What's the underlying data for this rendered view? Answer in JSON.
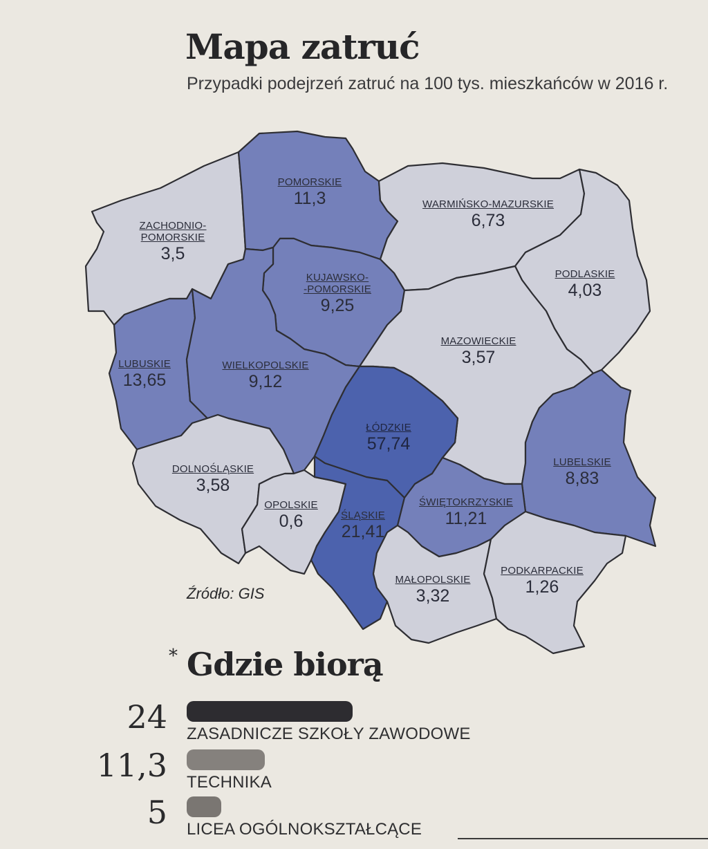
{
  "header": {
    "title": "Mapa zatruć",
    "subtitle": "Przypadki podejrzeń zatruć na 100 tys. mieszkańców w  2016 r."
  },
  "map": {
    "regions": [
      {
        "id": "pomorskie",
        "name": "POMORSKIE",
        "value": "11,3"
      },
      {
        "id": "zachodniopomorskie",
        "name_line1": "ZACHODNIO-",
        "name_line2": "POMORSKIE",
        "value": "3,5"
      },
      {
        "id": "warminsko-mazurskie",
        "name": "WARMIŃSKO-MAZURSKIE",
        "value": "6,73"
      },
      {
        "id": "kujawsko-pomorskie",
        "name_line1": "KUJAWSKO-",
        "name_line2": "-POMORSKIE",
        "value": "9,25"
      },
      {
        "id": "podlaskie",
        "name": "PODLASKIE",
        "value": "4,03"
      },
      {
        "id": "mazowieckie",
        "name": "MAZOWIECKIE",
        "value": "3,57"
      },
      {
        "id": "lubuskie",
        "name": "LUBUSKIE",
        "value": "13,65"
      },
      {
        "id": "wielkopolskie",
        "name": "WIELKOPOLSKIE",
        "value": "9,12"
      },
      {
        "id": "lodzkie",
        "name": "ŁÓDZKIE",
        "value": "57,74"
      },
      {
        "id": "lubelskie",
        "name": "LUBELSKIE",
        "value": "8,83"
      },
      {
        "id": "dolnoslaskie",
        "name": "DOLNOŚLĄSKIE",
        "value": "3,58"
      },
      {
        "id": "opolskie",
        "name": "OPOLSKIE",
        "value": "0,6"
      },
      {
        "id": "slaskie",
        "name": "ŚLĄSKIE",
        "value": "21,41"
      },
      {
        "id": "swietokrzyskie",
        "name": "ŚWIĘTOKRZYSKIE",
        "value": "11,21"
      },
      {
        "id": "malopolskie",
        "name": "MAŁOPOLSKIE",
        "value": "3,32"
      },
      {
        "id": "podkarpackie",
        "name": "PODKARPACKIE",
        "value": "1,26"
      }
    ],
    "colors": {
      "low": "#cfd0da",
      "mid": "#7480ba",
      "high": "#4c62ad"
    },
    "source": "Źródło: GIS"
  },
  "chart_data": {
    "type": "bar",
    "title": "Gdzie biorą",
    "title_marker": "*",
    "categories": [
      "ZASADNICZE SZKOŁY ZAWODOWE",
      "TECHNIKA",
      "LICEA OGÓLNOKSZTAŁCĄCE"
    ],
    "values": [
      24,
      11.3,
      5
    ],
    "value_labels": [
      "24",
      "11,3",
      "5"
    ],
    "colors": [
      "#2d2c30",
      "#85817d",
      "#7a7672"
    ]
  }
}
